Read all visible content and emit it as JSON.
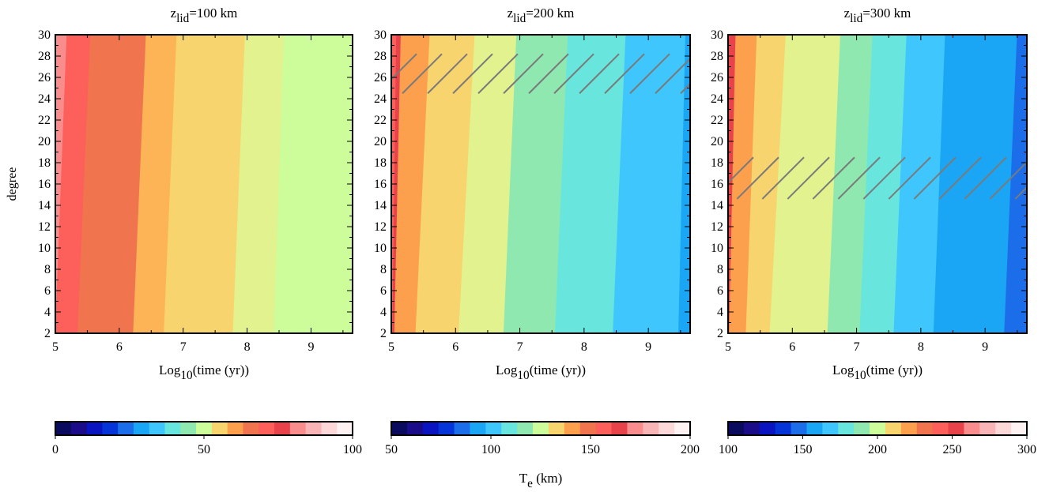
{
  "chart_data": [
    {
      "type": "heatmap",
      "title_main": "z",
      "title_sub": "lid",
      "title_rest": "=100 km",
      "xlabel_main": "Log",
      "xlabel_sub": "10",
      "xlabel_rest": "(time (yr))",
      "ylabel": "degree",
      "xlim": [
        5,
        9.65
      ],
      "ylim": [
        2,
        30
      ],
      "xticks": [
        "5",
        "6",
        "7",
        "8",
        "9"
      ],
      "yticks": [
        "2",
        "4",
        "6",
        "8",
        "10",
        "12",
        "14",
        "16",
        "18",
        "20",
        "22",
        "24",
        "26",
        "28",
        "30"
      ],
      "contour_bands": [
        {
          "value_range": [
            80,
            85
          ],
          "color": "#f98c8c",
          "boundary_at_y2": 5.0,
          "boundary_at_y30": 5.18
        },
        {
          "value_range": [
            75,
            80
          ],
          "color": "#fd5f5a",
          "boundary_at_y2": 5.35,
          "boundary_at_y30": 5.55
        },
        {
          "value_range": [
            70,
            75
          ],
          "color": "#f0744d",
          "boundary_at_y2": 6.22,
          "boundary_at_y30": 6.42
        },
        {
          "value_range": [
            65,
            70
          ],
          "color": "#fcb457",
          "boundary_at_y2": 6.7,
          "boundary_at_y30": 6.9
        },
        {
          "value_range": [
            60,
            65
          ],
          "color": "#f7d46d",
          "boundary_at_y2": 7.78,
          "boundary_at_y30": 7.97
        },
        {
          "value_range": [
            55,
            60
          ],
          "color": "#e1f28f",
          "boundary_at_y2": 8.42,
          "boundary_at_y30": 8.58
        },
        {
          "value_range": [
            50,
            55
          ],
          "color": "#ccfd9a",
          "boundary_at_y2": 9.65,
          "boundary_at_y30": 9.65
        }
      ],
      "hatch_regions": [],
      "colorbar": {
        "min": 0,
        "max": 100,
        "tick_labels": [
          "0",
          "50",
          "100"
        ]
      }
    },
    {
      "type": "heatmap",
      "title_main": "z",
      "title_sub": "lid",
      "title_rest": "=200 km",
      "xlabel_main": "Log",
      "xlabel_sub": "10",
      "xlabel_rest": "(time (yr))",
      "ylabel": "",
      "xlim": [
        5,
        9.65
      ],
      "ylim": [
        2,
        30
      ],
      "xticks": [
        "5",
        "6",
        "7",
        "8",
        "9"
      ],
      "yticks": [
        "2",
        "4",
        "6",
        "8",
        "10",
        "12",
        "14",
        "16",
        "18",
        "20",
        "22",
        "24",
        "26",
        "28",
        "30"
      ],
      "contour_bands": [
        {
          "value_range": [
            165,
            170
          ],
          "color": "#fd5f5a",
          "boundary_at_y2": 5.02,
          "boundary_at_y30": 5.08
        },
        {
          "value_range": [
            160,
            165
          ],
          "color": "#e8424a",
          "boundary_at_y2": 5.05,
          "boundary_at_y30": 5.15
        },
        {
          "value_range": [
            155,
            160
          ],
          "color": "#fca04e",
          "boundary_at_y2": 5.38,
          "boundary_at_y30": 5.6
        },
        {
          "value_range": [
            150,
            155
          ],
          "color": "#f7d46d",
          "boundary_at_y2": 6.05,
          "boundary_at_y30": 6.3
        },
        {
          "value_range": [
            145,
            150
          ],
          "color": "#e1f28f",
          "boundary_at_y2": 6.75,
          "boundary_at_y30": 6.95
        },
        {
          "value_range": [
            140,
            145
          ],
          "color": "#8fe8b0",
          "boundary_at_y2": 7.55,
          "boundary_at_y30": 7.75
        },
        {
          "value_range": [
            135,
            140
          ],
          "color": "#68e6dd",
          "boundary_at_y2": 8.45,
          "boundary_at_y30": 8.65
        },
        {
          "value_range": [
            130,
            135
          ],
          "color": "#3fc6fd",
          "boundary_at_y2": 9.47,
          "boundary_at_y30": 9.58
        },
        {
          "value_range": [
            125,
            130
          ],
          "color": "#1aa6f5",
          "boundary_at_y2": 9.65,
          "boundary_at_y30": 9.65
        }
      ],
      "hatch_regions": [
        {
          "y_range": [
            24.5,
            28.2
          ]
        }
      ],
      "colorbar": {
        "min": 50,
        "max": 200,
        "tick_labels": [
          "50",
          "100",
          "150",
          "200"
        ]
      }
    },
    {
      "type": "heatmap",
      "title_main": "z",
      "title_sub": "lid",
      "title_rest": "=300 km",
      "xlabel_main": "Log",
      "xlabel_sub": "10",
      "xlabel_rest": "(time (yr))",
      "ylabel": "",
      "xlim": [
        5,
        9.65
      ],
      "ylim": [
        2,
        30
      ],
      "xticks": [
        "5",
        "6",
        "7",
        "8",
        "9"
      ],
      "yticks": [
        "2",
        "4",
        "6",
        "8",
        "10",
        "12",
        "14",
        "16",
        "18",
        "20",
        "22",
        "24",
        "26",
        "28",
        "30"
      ],
      "contour_bands": [
        {
          "value_range": [
            255,
            260
          ],
          "color": "#e8424a",
          "boundary_at_y2": 5.02,
          "boundary_at_y30": 5.12
        },
        {
          "value_range": [
            250,
            255
          ],
          "color": "#fca04e",
          "boundary_at_y2": 5.28,
          "boundary_at_y30": 5.45
        },
        {
          "value_range": [
            245,
            250
          ],
          "color": "#f7d46d",
          "boundary_at_y2": 5.65,
          "boundary_at_y30": 5.9
        },
        {
          "value_range": [
            240,
            245
          ],
          "color": "#e1f28f",
          "boundary_at_y2": 6.55,
          "boundary_at_y30": 6.75
        },
        {
          "value_range": [
            235,
            240
          ],
          "color": "#8fe8b0",
          "boundary_at_y2": 7.05,
          "boundary_at_y30": 7.25
        },
        {
          "value_range": [
            230,
            235
          ],
          "color": "#68e6dd",
          "boundary_at_y2": 7.58,
          "boundary_at_y30": 7.78
        },
        {
          "value_range": [
            225,
            230
          ],
          "color": "#3fc6fd",
          "boundary_at_y2": 8.2,
          "boundary_at_y30": 8.38
        },
        {
          "value_range": [
            220,
            225
          ],
          "color": "#1aa6f5",
          "boundary_at_y2": 9.3,
          "boundary_at_y30": 9.5
        },
        {
          "value_range": [
            215,
            220
          ],
          "color": "#1c6de9",
          "boundary_at_y2": 9.65,
          "boundary_at_y30": 9.65
        }
      ],
      "hatch_regions": [
        {
          "y_range": [
            14.6,
            18.5
          ]
        }
      ],
      "colorbar": {
        "min": 100,
        "max": 300,
        "tick_labels": [
          "100",
          "150",
          "200",
          "250",
          "300"
        ]
      }
    }
  ],
  "colorbar_label_main": "T",
  "colorbar_label_sub": "e",
  "colorbar_label_rest": "(km)",
  "colormap": [
    "#0a0b5e",
    "#1b0c8a",
    "#0a14c0",
    "#0534d8",
    "#1c6de9",
    "#1aa6f5",
    "#3fc6fd",
    "#68e6dd",
    "#8fe8b0",
    "#ccfd9a",
    "#f7d46d",
    "#fca04e",
    "#f0744d",
    "#fd5f5a",
    "#e8424a",
    "#f98c8c",
    "#f9b5b5",
    "#fdd8d8",
    "#fff2f2"
  ]
}
